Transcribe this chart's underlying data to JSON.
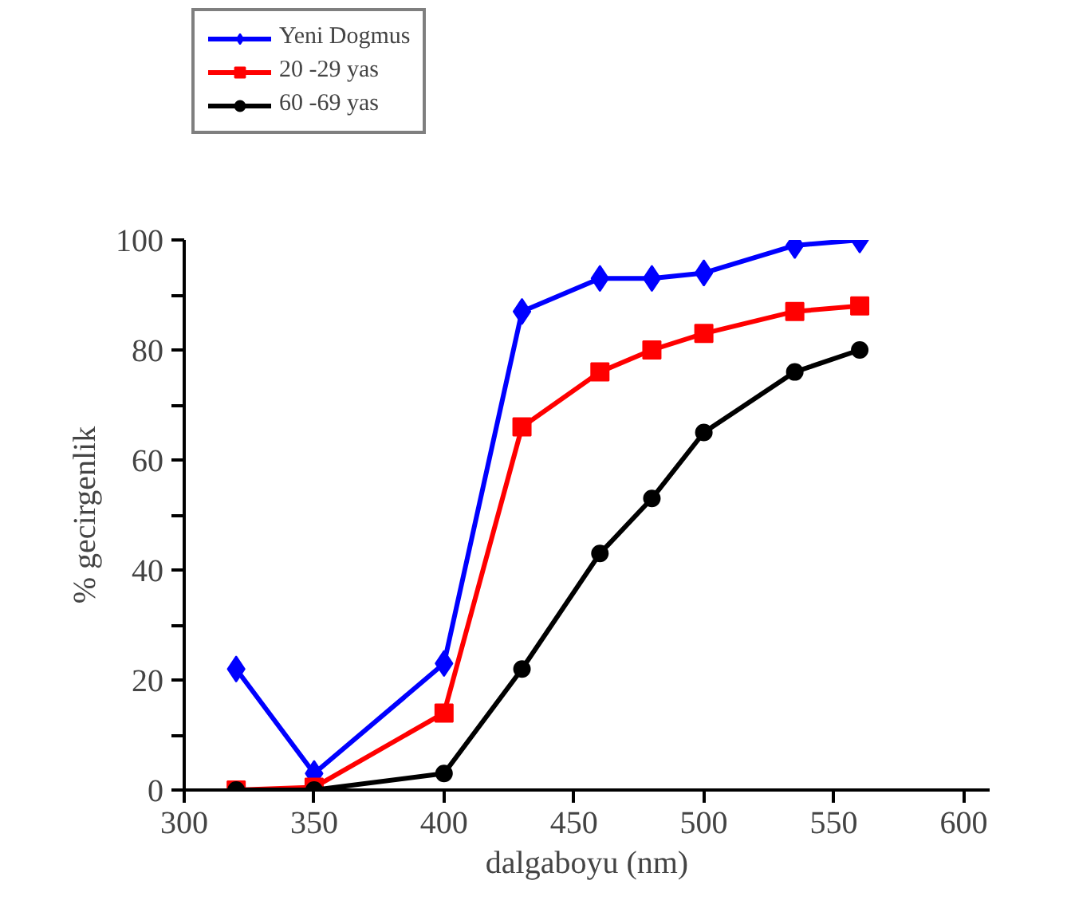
{
  "chart_data": {
    "type": "line",
    "xlabel": "dalgaboyu (nm)",
    "ylabel": "% gecirgenlik",
    "x": [
      320,
      350,
      400,
      430,
      460,
      480,
      500,
      535,
      560
    ],
    "series": [
      {
        "name": "Yeni Dogmus",
        "color": "#0000ff",
        "marker": "diamond",
        "values": [
          22,
          3,
          23,
          87,
          93,
          93,
          94,
          99,
          100
        ]
      },
      {
        "name": "20 -29 yas",
        "color": "#ff0000",
        "marker": "square",
        "values": [
          0,
          0.5,
          14,
          66,
          76,
          80,
          83,
          87,
          88
        ]
      },
      {
        "name": "60 -69 yas",
        "color": "#000000",
        "marker": "circle",
        "values": [
          0,
          0,
          3,
          22,
          43,
          53,
          65,
          76,
          80
        ]
      }
    ],
    "xlim": [
      300,
      610
    ],
    "ylim": [
      0,
      100
    ],
    "xticks": [
      300,
      350,
      400,
      450,
      500,
      550,
      600
    ],
    "yticks": [
      0,
      {
        "value": 10,
        "label": null
      },
      20,
      {
        "value": 30,
        "label": null
      },
      40,
      {
        "value": 50,
        "label": null
      },
      60,
      {
        "value": 70,
        "label": null
      },
      80,
      {
        "value": 90,
        "label": null
      },
      100
    ],
    "grid": false,
    "legend": "top left",
    "line_style": "solid"
  }
}
